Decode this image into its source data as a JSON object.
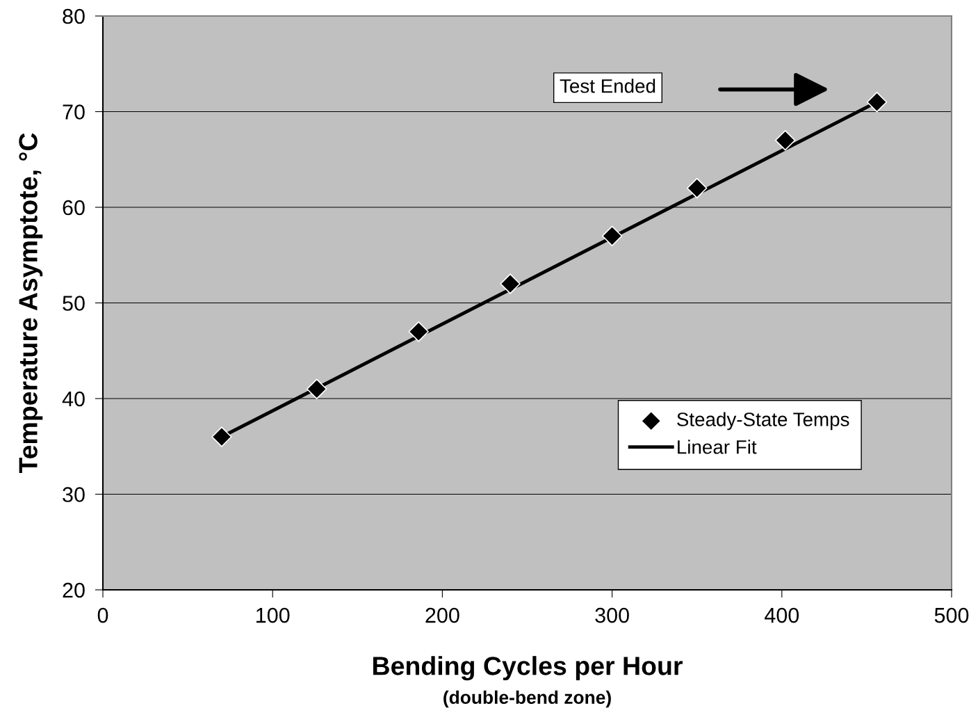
{
  "chart_data": {
    "type": "scatter",
    "xlabel": "Bending Cycles per Hour",
    "ylabel": "Temperature Asymptote, °C",
    "series": [
      {
        "name": "Steady-State Temps",
        "color": "#000000",
        "marker": "diamond",
        "x": [
          70,
          126,
          186,
          240,
          300,
          350,
          402,
          456
        ],
        "values": [
          36,
          41,
          47,
          52,
          57,
          62,
          67,
          71
        ]
      },
      {
        "name": "Linear Fit",
        "type": "line",
        "color": "#000000",
        "line_style": "solid",
        "x": [
          70,
          456
        ],
        "values": [
          36,
          71
        ]
      }
    ],
    "annotations": [
      "Test Ended",
      "(double-bend zone)"
    ],
    "xlim": [
      0,
      500
    ],
    "xticks": [
      0,
      100,
      200,
      300,
      400,
      500
    ],
    "ylim": [
      20,
      80
    ],
    "yticks": [
      20,
      30,
      40,
      50,
      60,
      70,
      80
    ],
    "grid": "y",
    "legend": "right"
  }
}
